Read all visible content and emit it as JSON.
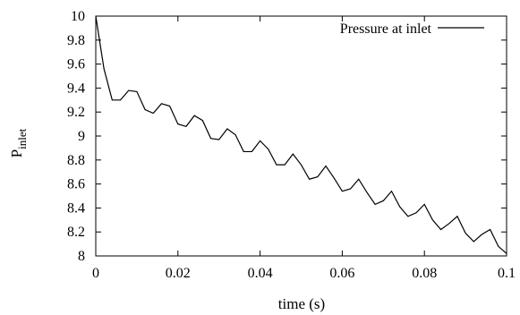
{
  "chart_data": {
    "type": "line",
    "title": "",
    "xlabel": "time (s)",
    "ylabel": "P",
    "ylabel_subscript": "inlet",
    "xlim": [
      0,
      0.1
    ],
    "ylim": [
      8,
      10
    ],
    "xticks": [
      0,
      0.02,
      0.04,
      0.06,
      0.08,
      0.1
    ],
    "xtick_labels": [
      "0",
      "0.02",
      "0.04",
      "0.06",
      "0.08",
      "0.1"
    ],
    "yticks": [
      8,
      8.2,
      8.4,
      8.6,
      8.8,
      9,
      9.2,
      9.4,
      9.6,
      9.8,
      10
    ],
    "ytick_labels": [
      "8",
      "8.2",
      "8.4",
      "8.6",
      "8.8",
      "9",
      "9.2",
      "9.4",
      "9.6",
      "9.8",
      "10"
    ],
    "grid": false,
    "legend_position": "top-right",
    "series": [
      {
        "name": "Pressure at inlet",
        "color": "#000000",
        "x": [
          0,
          0.002,
          0.004,
          0.006,
          0.008,
          0.01,
          0.012,
          0.014,
          0.016,
          0.018,
          0.02,
          0.022,
          0.024,
          0.026,
          0.028,
          0.03,
          0.032,
          0.034,
          0.036,
          0.038,
          0.04,
          0.042,
          0.044,
          0.046,
          0.048,
          0.05,
          0.052,
          0.054,
          0.056,
          0.058,
          0.06,
          0.062,
          0.064,
          0.066,
          0.068,
          0.07,
          0.072,
          0.074,
          0.076,
          0.078,
          0.08,
          0.082,
          0.084,
          0.086,
          0.088,
          0.09,
          0.092,
          0.094,
          0.096,
          0.098,
          0.1
        ],
        "y": [
          10.0,
          9.56,
          9.3,
          9.3,
          9.38,
          9.37,
          9.22,
          9.19,
          9.27,
          9.25,
          9.1,
          9.08,
          9.17,
          9.13,
          8.98,
          8.97,
          9.06,
          9.01,
          8.87,
          8.87,
          8.96,
          8.89,
          8.76,
          8.76,
          8.85,
          8.76,
          8.64,
          8.66,
          8.75,
          8.65,
          8.54,
          8.56,
          8.64,
          8.53,
          8.43,
          8.46,
          8.54,
          8.41,
          8.33,
          8.36,
          8.43,
          8.3,
          8.22,
          8.27,
          8.33,
          8.19,
          8.12,
          8.18,
          8.22,
          8.08,
          8.02
        ]
      }
    ]
  }
}
